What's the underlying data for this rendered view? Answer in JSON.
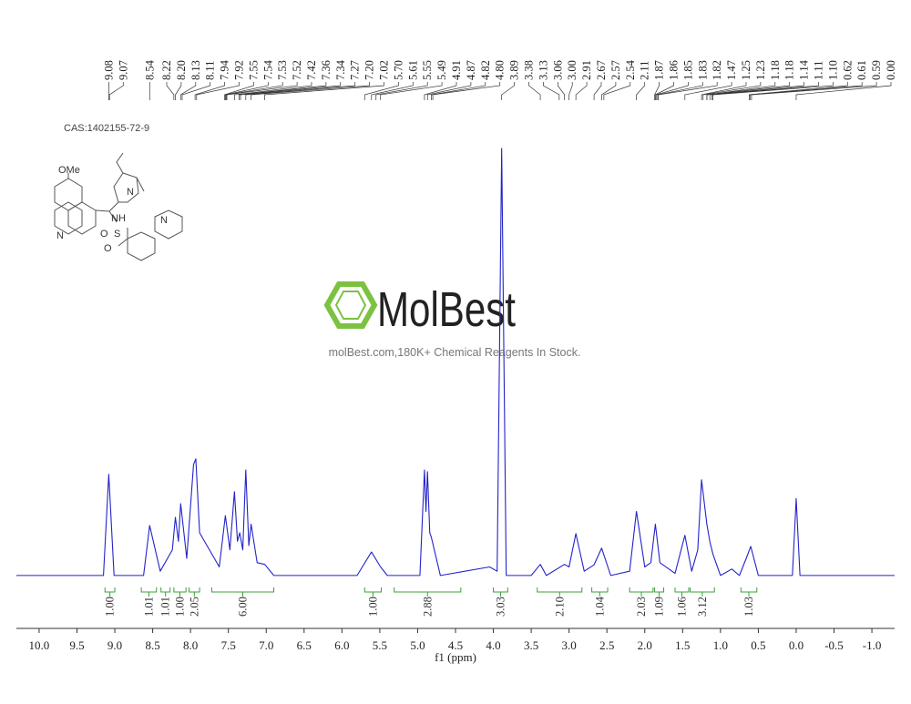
{
  "chart_data": {
    "type": "line",
    "title": "CAS:1402155-72-9",
    "xlabel": "f1 (ppm)",
    "watermark": {
      "brand": "MolBest",
      "tagline": "molBest.com,180K+ Chemical Reagents In Stock."
    },
    "structure": {
      "labels": [
        "OMe",
        "N",
        "N",
        "NH",
        "S",
        "O",
        "O",
        "N"
      ]
    },
    "xlim": [
      10.3,
      -1.3
    ],
    "ylim": [
      -6,
      100
    ],
    "xticks": [
      {
        "value": 10,
        "label": "10.0"
      },
      {
        "value": 9.5,
        "label": "9.5"
      },
      {
        "value": 9,
        "label": "9.0"
      },
      {
        "value": 8.5,
        "label": "8.5"
      },
      {
        "value": 8,
        "label": "8.0"
      },
      {
        "value": 7.5,
        "label": "7.5"
      },
      {
        "value": 7,
        "label": "7.0"
      },
      {
        "value": 6.5,
        "label": "6.5"
      },
      {
        "value": 6,
        "label": "6.0"
      },
      {
        "value": 5.5,
        "label": "5.5"
      },
      {
        "value": 5,
        "label": "5.0"
      },
      {
        "value": 4.5,
        "label": "4.5"
      },
      {
        "value": 4,
        "label": "4.0"
      },
      {
        "value": 3.5,
        "label": "3.5"
      },
      {
        "value": 3,
        "label": "3.0"
      },
      {
        "value": 2.5,
        "label": "2.5"
      },
      {
        "value": 2,
        "label": "2.0"
      },
      {
        "value": 1.5,
        "label": "1.5"
      },
      {
        "value": 1,
        "label": "1.0"
      },
      {
        "value": 0.5,
        "label": "0.5"
      },
      {
        "value": 0,
        "label": "0.0"
      },
      {
        "value": -0.5,
        "label": "-0.5"
      },
      {
        "value": -1,
        "label": "-1.0"
      }
    ],
    "x": [
      10.3,
      9.15,
      9.08,
      9.01,
      8.62,
      8.54,
      8.4,
      8.24,
      8.2,
      8.16,
      8.13,
      8.05,
      7.96,
      7.93,
      7.88,
      7.62,
      7.54,
      7.48,
      7.42,
      7.38,
      7.35,
      7.31,
      7.27,
      7.23,
      7.2,
      7.12,
      7.02,
      6.9,
      5.8,
      5.61,
      5.49,
      5.4,
      4.97,
      4.91,
      4.89,
      4.87,
      4.84,
      4.82,
      4.7,
      4.05,
      3.95,
      3.89,
      3.83,
      3.5,
      3.38,
      3.3,
      3.06,
      3.0,
      2.91,
      2.8,
      2.67,
      2.57,
      2.45,
      2.2,
      2.11,
      2.0,
      1.92,
      1.86,
      1.8,
      1.6,
      1.47,
      1.38,
      1.3,
      1.25,
      1.18,
      1.14,
      1.1,
      1.0,
      0.85,
      0.75,
      0.66,
      0.6,
      0.5,
      0.05,
      0.0,
      -0.05,
      -1.3
    ],
    "series": [
      {
        "color": "#2323c8",
        "values": [
          0,
          0,
          23.7,
          0,
          0,
          11.7,
          1,
          6,
          13.6,
          8,
          16.8,
          4,
          26,
          27.3,
          10,
          2,
          14,
          6,
          19.6,
          8,
          10,
          6,
          24.7,
          7,
          12,
          3,
          2.6,
          0,
          0,
          5.5,
          2,
          0,
          0,
          24.7,
          15,
          24.3,
          10,
          9,
          0,
          2,
          1,
          100,
          0,
          0,
          2.6,
          0,
          2.6,
          2,
          9.8,
          1,
          2.5,
          6.4,
          0,
          1,
          15,
          2,
          3,
          12,
          3,
          0.5,
          9.4,
          1,
          6,
          22.4,
          12,
          7.9,
          5,
          0,
          1.5,
          0,
          4,
          6.8,
          0,
          0,
          18,
          0,
          0
        ]
      }
    ],
    "peak_labels": [
      {
        "value": 9.08,
        "label": "9.08"
      },
      {
        "value": 9.07,
        "label": "9.07"
      },
      {
        "value": 8.54,
        "label": "8.54"
      },
      {
        "value": 8.22,
        "label": "8.22"
      },
      {
        "value": 8.2,
        "label": "8.20"
      },
      {
        "value": 8.13,
        "label": "8.13"
      },
      {
        "value": 8.11,
        "label": "8.11"
      },
      {
        "value": 7.94,
        "label": "7.94"
      },
      {
        "value": 7.92,
        "label": "7.92"
      },
      {
        "value": 7.55,
        "label": "7.55"
      },
      {
        "value": 7.54,
        "label": "7.54"
      },
      {
        "value": 7.53,
        "label": "7.53"
      },
      {
        "value": 7.52,
        "label": "7.52"
      },
      {
        "value": 7.42,
        "label": "7.42"
      },
      {
        "value": 7.36,
        "label": "7.36"
      },
      {
        "value": 7.34,
        "label": "7.34"
      },
      {
        "value": 7.27,
        "label": "7.27"
      },
      {
        "value": 7.2,
        "label": "7.20"
      },
      {
        "value": 7.02,
        "label": "7.02"
      },
      {
        "value": 5.7,
        "label": "5.70"
      },
      {
        "value": 5.61,
        "label": "5.61"
      },
      {
        "value": 5.55,
        "label": "5.55"
      },
      {
        "value": 5.49,
        "label": "5.49"
      },
      {
        "value": 4.91,
        "label": "4.91"
      },
      {
        "value": 4.87,
        "label": "4.87"
      },
      {
        "value": 4.82,
        "label": "4.82"
      },
      {
        "value": 4.8,
        "label": "4.80"
      },
      {
        "value": 3.89,
        "label": "3.89"
      },
      {
        "value": 3.38,
        "label": "3.38"
      },
      {
        "value": 3.13,
        "label": "3.13"
      },
      {
        "value": 3.06,
        "label": "3.06"
      },
      {
        "value": 3.0,
        "label": "3.00"
      },
      {
        "value": 2.91,
        "label": "2.91"
      },
      {
        "value": 2.67,
        "label": "2.67"
      },
      {
        "value": 2.57,
        "label": "2.57"
      },
      {
        "value": 2.54,
        "label": "2.54"
      },
      {
        "value": 2.11,
        "label": "2.11"
      },
      {
        "value": 1.87,
        "label": "1.87"
      },
      {
        "value": 1.86,
        "label": "1.86"
      },
      {
        "value": 1.85,
        "label": "1.85"
      },
      {
        "value": 1.83,
        "label": "1.83"
      },
      {
        "value": 1.82,
        "label": "1.82"
      },
      {
        "value": 1.47,
        "label": "1.47"
      },
      {
        "value": 1.25,
        "label": "1.25"
      },
      {
        "value": 1.23,
        "label": "1.23"
      },
      {
        "value": 1.18,
        "label": "1.18"
      },
      {
        "value": 1.18,
        "label": "1.18"
      },
      {
        "value": 1.14,
        "label": "1.14"
      },
      {
        "value": 1.11,
        "label": "1.11"
      },
      {
        "value": 1.1,
        "label": "1.10"
      },
      {
        "value": 0.62,
        "label": "0.62"
      },
      {
        "value": 0.61,
        "label": "0.61"
      },
      {
        "value": 0.59,
        "label": "0.59"
      },
      {
        "value": 0.0,
        "label": "0.00"
      }
    ],
    "integral_ranges": [
      [
        9.13,
        9.0
      ],
      [
        8.65,
        8.45
      ],
      [
        8.39,
        8.27
      ],
      [
        8.22,
        8.06
      ],
      [
        8.02,
        7.88
      ],
      [
        7.72,
        6.9
      ],
      [
        5.7,
        5.48
      ],
      [
        5.31,
        4.43
      ],
      [
        4.0,
        3.81
      ],
      [
        3.42,
        2.83
      ],
      [
        2.7,
        2.49
      ],
      [
        2.2,
        1.89
      ],
      [
        1.87,
        1.75
      ],
      [
        1.6,
        1.42
      ],
      [
        1.4,
        1.08
      ],
      [
        0.73,
        0.52
      ]
    ],
    "integral_values": [
      1,
      1.01,
      1.01,
      1,
      2.05,
      6,
      1,
      2.88,
      3.03,
      2.1,
      1.04,
      2.03,
      1.09,
      1.06,
      3.12,
      1.03
    ],
    "integral_labels": [
      "1.00",
      "1.01",
      "1.01",
      "1.00",
      "2.05",
      "6.00",
      "1.00",
      "2.88",
      "3.03",
      "2.10",
      "1.04",
      "2.03",
      "1.09",
      "1.06",
      "3.12",
      "1.03"
    ],
    "integral_color": "#3aa03a"
  }
}
